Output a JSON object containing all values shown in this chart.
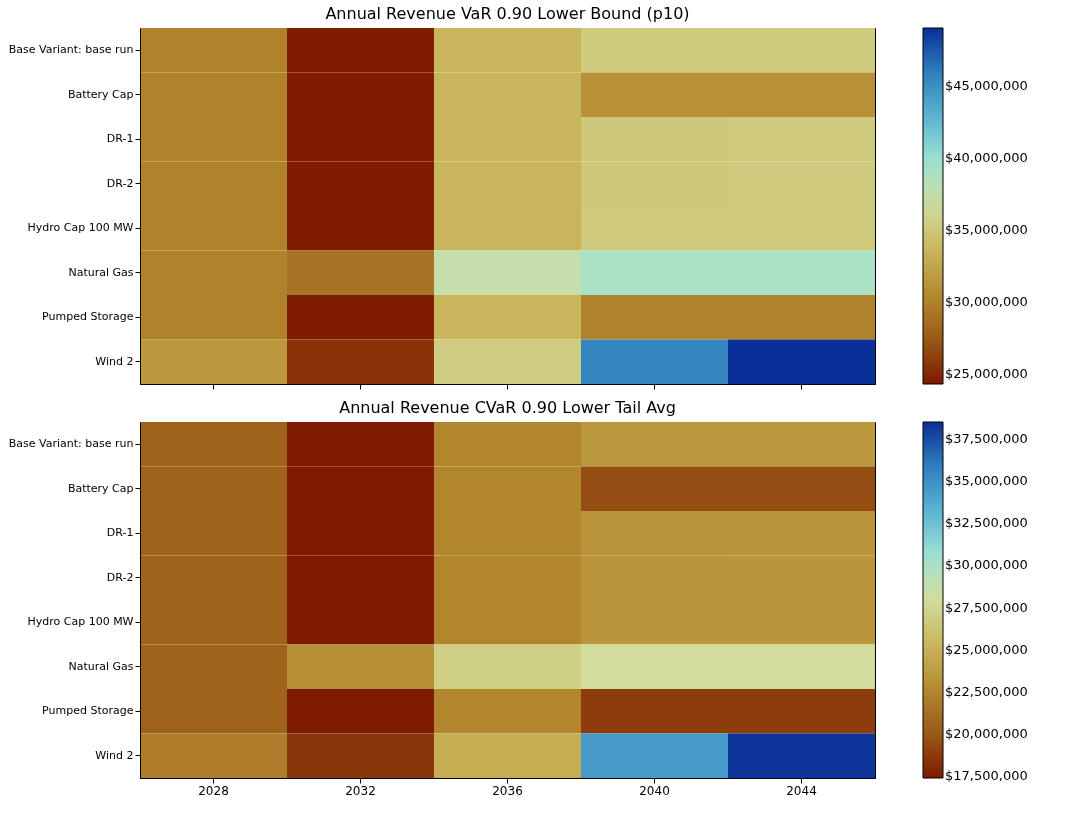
{
  "chart_data": [
    {
      "type": "heatmap",
      "title": "Annual Revenue VaR 0.90 Lower Bound (p10)",
      "categories": [
        "2028",
        "2032",
        "2036",
        "2040",
        "2044"
      ],
      "y_categories": [
        "Base Variant: base run",
        "Battery Cap",
        "DR-1",
        "DR-2",
        "Hydro Cap 100 MW",
        "Natural Gas",
        "Pumped Storage",
        "Wind 2"
      ],
      "cells": [
        [
          30000000,
          24500000,
          33500000,
          35200000,
          35200000
        ],
        [
          30000000,
          24500000,
          33500000,
          31000000,
          31000000
        ],
        [
          30000000,
          24500000,
          33500000,
          35000000,
          35100000
        ],
        [
          30000000,
          24500000,
          33500000,
          35000000,
          35100000
        ],
        [
          30000000,
          24500000,
          33500000,
          35100000,
          35100000
        ],
        [
          30000000,
          29000000,
          37500000,
          39000000,
          39000000
        ],
        [
          30000000,
          24500000,
          33500000,
          30000000,
          30000000
        ],
        [
          31500000,
          25500000,
          35300000,
          45500000,
          49000000
        ]
      ],
      "clim": [
        24300000,
        49000000
      ],
      "cticks": [
        {
          "value": 25000000,
          "label": "$25,000,000"
        },
        {
          "value": 30000000,
          "label": "$30,000,000"
        },
        {
          "value": 35000000,
          "label": "$35,000,000"
        },
        {
          "value": 40000000,
          "label": "$40,000,000"
        },
        {
          "value": 45000000,
          "label": "$45,000,000"
        }
      ],
      "tick_labels": "y"
    },
    {
      "type": "heatmap",
      "title": "Annual Revenue CVaR 0.90 Lower Tail Avg",
      "categories": [
        "2028",
        "2032",
        "2036",
        "2040",
        "2044"
      ],
      "y_categories": [
        "Base Variant: base run",
        "Battery Cap",
        "DR-1",
        "DR-2",
        "Hydro Cap 100 MW",
        "Natural Gas",
        "Pumped Storage",
        "Wind 2"
      ],
      "cells": [
        [
          20500000,
          17500000,
          22500000,
          23500000,
          23500000
        ],
        [
          20500000,
          17500000,
          22500000,
          19500000,
          19500000
        ],
        [
          20500000,
          17500000,
          22500000,
          23300000,
          23400000
        ],
        [
          20500000,
          17500000,
          22500000,
          23300000,
          23400000
        ],
        [
          20500000,
          17500000,
          22500000,
          23400000,
          23400000
        ],
        [
          20500000,
          23000000,
          27000000,
          28000000,
          28000000
        ],
        [
          20500000,
          17500000,
          22500000,
          18800000,
          18800000
        ],
        [
          22000000,
          18500000,
          24800000,
          34500000,
          38300000
        ]
      ],
      "clim": [
        17400000,
        38500000
      ],
      "cticks": [
        {
          "value": 17500000,
          "label": "$17,500,000"
        },
        {
          "value": 20000000,
          "label": "$20,000,000"
        },
        {
          "value": 22500000,
          "label": "$22,500,000"
        },
        {
          "value": 25000000,
          "label": "$25,000,000"
        },
        {
          "value": 27500000,
          "label": "$27,500,000"
        },
        {
          "value": 30000000,
          "label": "$30,000,000"
        },
        {
          "value": 32500000,
          "label": "$32,500,000"
        },
        {
          "value": 35000000,
          "label": "$35,000,000"
        },
        {
          "value": 37500000,
          "label": "$37,500,000"
        }
      ]
    }
  ]
}
